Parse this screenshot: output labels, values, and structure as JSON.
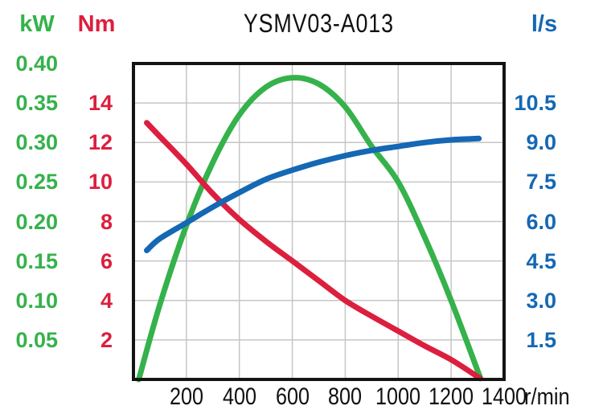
{
  "title": "YSMV03-A013",
  "chart_data": {
    "type": "line",
    "title": "YSMV03-A013",
    "xlabel": "r/min",
    "grid": true,
    "background": "#ffffff",
    "border_color": "#141414",
    "grid_color": "#c6c6c6",
    "x_axis": {
      "unit": "r/min",
      "range": [
        0,
        1400
      ],
      "tick_labels": [
        "200",
        "400",
        "600",
        "800",
        "1000",
        "1200",
        "1400"
      ]
    },
    "axes": [
      {
        "id": "power",
        "unit": "kW",
        "color": "#35b24b",
        "range": [
          0,
          0.4
        ],
        "tick_step": 0.05,
        "tick_labels": [
          "0.40",
          "0.35",
          "0.30",
          "0.25",
          "0.20",
          "0.15",
          "0.10",
          "0.05"
        ],
        "position": "outer-left"
      },
      {
        "id": "torque",
        "unit": "Nm",
        "color": "#dc1f3e",
        "range": [
          0,
          16
        ],
        "tick_step": 2,
        "tick_labels": [
          "14",
          "12",
          "10",
          "8",
          "6",
          "4",
          "2"
        ],
        "position": "inner-left"
      },
      {
        "id": "flow",
        "unit": "l/s",
        "color": "#1468b4",
        "range": [
          0,
          12
        ],
        "tick_step": 1.5,
        "tick_labels": [
          "10.5",
          "9.0",
          "7.5",
          "6.0",
          "4.5",
          "3.0",
          "1.5"
        ],
        "position": "right"
      }
    ],
    "series": [
      {
        "name": "power",
        "axis": "power",
        "unit": "kW",
        "color": "#35b24b",
        "points": [
          [
            20,
            0
          ],
          [
            100,
            0.095
          ],
          [
            200,
            0.195
          ],
          [
            300,
            0.275
          ],
          [
            400,
            0.335
          ],
          [
            500,
            0.37
          ],
          [
            600,
            0.382
          ],
          [
            700,
            0.374
          ],
          [
            800,
            0.345
          ],
          [
            900,
            0.295
          ],
          [
            1000,
            0.25
          ],
          [
            1100,
            0.18
          ],
          [
            1200,
            0.1
          ],
          [
            1310,
            0.002
          ]
        ]
      },
      {
        "name": "torque",
        "axis": "torque",
        "unit": "Nm",
        "color": "#dc1f3e",
        "points": [
          [
            50,
            13.0
          ],
          [
            100,
            12.3
          ],
          [
            200,
            10.9
          ],
          [
            300,
            9.4
          ],
          [
            400,
            8.1
          ],
          [
            500,
            7.0
          ],
          [
            600,
            6.0
          ],
          [
            700,
            5.0
          ],
          [
            800,
            4.0
          ],
          [
            900,
            3.2
          ],
          [
            1000,
            2.45
          ],
          [
            1100,
            1.7
          ],
          [
            1200,
            1.0
          ],
          [
            1310,
            0.05
          ]
        ]
      },
      {
        "name": "flow",
        "axis": "flow",
        "unit": "l/s",
        "color": "#1468b4",
        "points": [
          [
            50,
            4.9
          ],
          [
            100,
            5.35
          ],
          [
            200,
            5.95
          ],
          [
            300,
            6.55
          ],
          [
            400,
            7.1
          ],
          [
            500,
            7.6
          ],
          [
            600,
            7.95
          ],
          [
            700,
            8.25
          ],
          [
            800,
            8.5
          ],
          [
            900,
            8.7
          ],
          [
            1000,
            8.85
          ],
          [
            1100,
            9.0
          ],
          [
            1200,
            9.1
          ],
          [
            1305,
            9.15
          ]
        ]
      }
    ]
  }
}
